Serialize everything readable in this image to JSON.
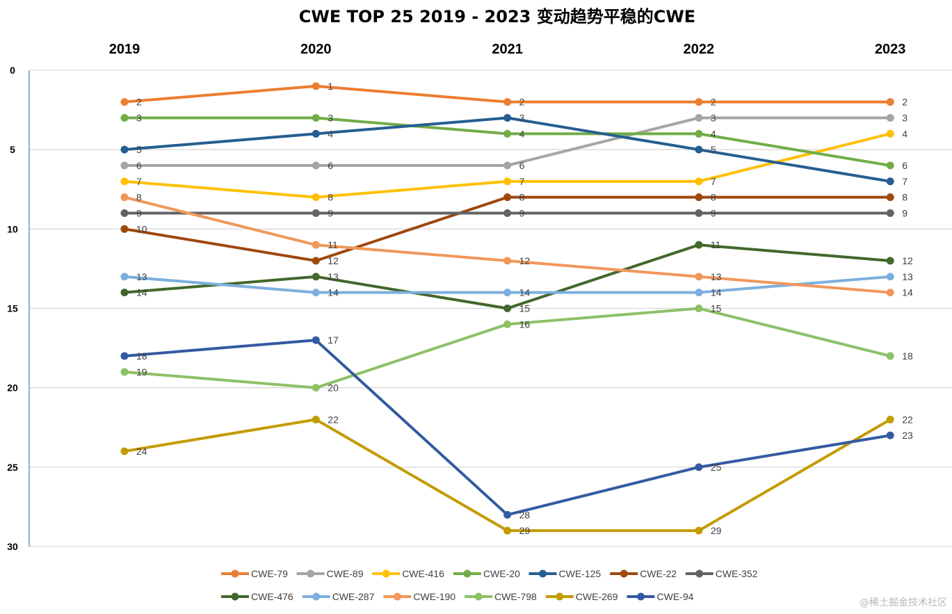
{
  "chart_data": {
    "type": "line",
    "title": "CWE TOP 25 2019 - 2023 变动趋势平稳的CWE",
    "categories": [
      "2019",
      "2020",
      "2021",
      "2022",
      "2023"
    ],
    "xaxis_position": "top",
    "ylim": [
      0,
      30
    ],
    "y_reversed": true,
    "yticks": [
      "0",
      "5",
      "10",
      "15",
      "20",
      "25",
      "30"
    ],
    "grid": true,
    "legend": "bottom",
    "data_labels": true,
    "series": [
      {
        "name": "CWE-79",
        "color": "#ED7D31",
        "values": [
          2,
          1,
          2,
          2,
          2
        ]
      },
      {
        "name": "CWE-89",
        "color": "#A5A5A5",
        "values": [
          6,
          6,
          6,
          3,
          3
        ]
      },
      {
        "name": "CWE-416",
        "color": "#FFC000",
        "values": [
          7,
          8,
          7,
          7,
          4
        ]
      },
      {
        "name": "CWE-20",
        "color": "#70AD47",
        "values": [
          3,
          3,
          4,
          4,
          6
        ]
      },
      {
        "name": "CWE-125",
        "color": "#255E91",
        "values": [
          5,
          4,
          3,
          5,
          7
        ]
      },
      {
        "name": "CWE-22",
        "color": "#9E480E",
        "values": [
          10,
          12,
          8,
          8,
          8
        ]
      },
      {
        "name": "CWE-352",
        "color": "#636363",
        "values": [
          9,
          9,
          9,
          9,
          9
        ]
      },
      {
        "name": "CWE-476",
        "color": "#43682B",
        "values": [
          14,
          13,
          15,
          11,
          12
        ]
      },
      {
        "name": "CWE-287",
        "color": "#7CAFDD",
        "values": [
          13,
          14,
          14,
          14,
          13
        ]
      },
      {
        "name": "CWE-190",
        "color": "#F1975A",
        "values": [
          8,
          11,
          12,
          13,
          14
        ]
      },
      {
        "name": "CWE-798",
        "color": "#8CC168",
        "values": [
          19,
          20,
          16,
          15,
          18
        ]
      },
      {
        "name": "CWE-269",
        "color": "#C39B00",
        "values": [
          24,
          22,
          29,
          29,
          22
        ]
      },
      {
        "name": "CWE-94",
        "color": "#335AA1",
        "values": [
          18,
          17,
          28,
          25,
          23
        ]
      }
    ]
  },
  "watermark": "@稀土掘金技术社区"
}
